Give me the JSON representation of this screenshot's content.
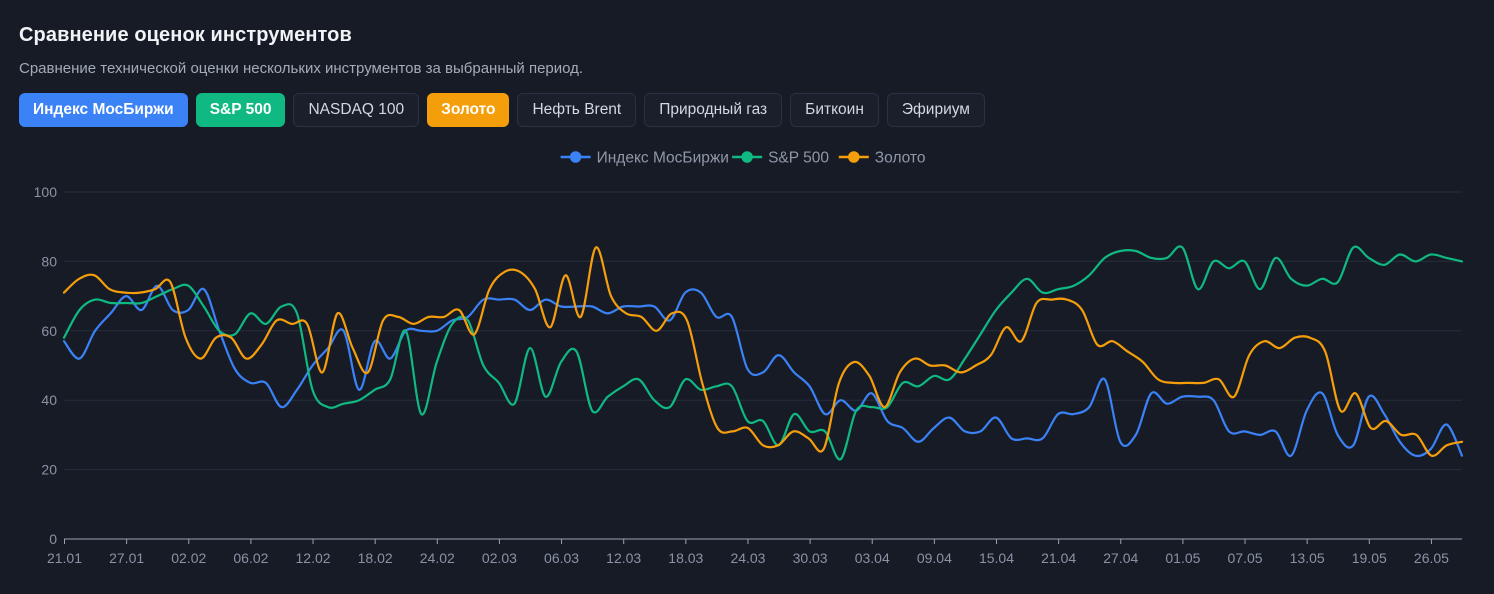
{
  "header": {
    "title": "Сравнение оценок инструментов",
    "subtitle": "Сравнение технической оценки нескольких инструментов за выбранный период."
  },
  "instruments": [
    {
      "label": "Индекс МосБиржи",
      "active": true,
      "color": "#3b82f6"
    },
    {
      "label": "S&P 500",
      "active": true,
      "color": "#10b981"
    },
    {
      "label": "NASDAQ 100",
      "active": false,
      "color": ""
    },
    {
      "label": "Золото",
      "active": true,
      "color": "#f59e0b"
    },
    {
      "label": "Нефть Brent",
      "active": false,
      "color": ""
    },
    {
      "label": "Природный газ",
      "active": false,
      "color": ""
    },
    {
      "label": "Биткоин",
      "active": false,
      "color": ""
    },
    {
      "label": "Эфириум",
      "active": false,
      "color": ""
    }
  ],
  "chart_data": {
    "type": "line",
    "title": "",
    "xlabel": "",
    "ylabel": "",
    "ylim": [
      0,
      100
    ],
    "yticks": [
      0,
      20,
      40,
      60,
      80,
      100
    ],
    "xticks": [
      "21.01",
      "27.01",
      "02.02",
      "06.02",
      "12.02",
      "18.02",
      "24.02",
      "02.03",
      "06.03",
      "12.03",
      "18.03",
      "24.03",
      "30.03",
      "03.04",
      "09.04",
      "15.04",
      "21.04",
      "27.04",
      "01.05",
      "07.05",
      "13.05",
      "19.05",
      "26.05"
    ],
    "legend_position": "top-center",
    "grid": true,
    "series": [
      {
        "name": "Индекс МосБиржи",
        "color": "#3b82f6",
        "values": [
          57,
          52,
          60,
          65,
          70,
          66,
          73,
          66,
          66,
          72,
          60,
          49,
          45,
          45,
          38,
          43,
          50,
          55,
          60,
          43,
          57,
          52,
          60,
          60,
          60,
          63,
          64,
          69,
          69,
          69,
          66,
          69,
          67,
          67,
          67,
          65,
          67,
          67,
          67,
          63,
          71,
          71,
          64,
          64,
          49,
          48,
          53,
          48,
          44,
          36,
          40,
          37,
          42,
          34,
          32,
          28,
          32,
          35,
          31,
          31,
          35,
          29,
          29,
          29,
          36,
          36,
          38,
          46,
          28,
          30,
          42,
          39,
          41,
          41,
          40,
          31,
          31,
          30,
          31,
          24,
          37,
          42,
          30,
          27,
          41,
          36,
          28,
          24,
          26,
          33,
          24
        ]
      },
      {
        "name": "S&P 500",
        "color": "#10b981",
        "values": [
          58,
          66,
          69,
          68,
          68,
          68,
          70,
          72,
          73,
          67,
          60,
          59,
          65,
          62,
          67,
          65,
          43,
          38,
          39,
          40,
          43,
          46,
          60,
          36,
          51,
          62,
          63,
          50,
          45,
          39,
          55,
          41,
          51,
          54,
          37,
          41,
          44,
          46,
          40,
          38,
          46,
          43,
          44,
          44,
          34,
          34,
          27,
          36,
          31,
          31,
          23,
          37,
          38,
          38,
          45,
          44,
          47,
          46,
          52,
          59,
          66,
          71,
          75,
          71,
          72,
          73,
          76,
          81,
          83,
          83,
          81,
          81,
          84,
          72,
          80,
          78,
          80,
          72,
          81,
          75,
          73,
          75,
          74,
          84,
          81,
          79,
          82,
          80,
          82,
          81,
          80
        ]
      },
      {
        "name": "Золото",
        "color": "#f59e0b",
        "values": [
          71,
          75,
          76,
          72,
          71,
          71,
          72,
          74,
          58,
          52,
          58,
          58,
          52,
          56,
          63,
          62,
          62,
          48,
          65,
          55,
          48,
          63,
          64,
          62,
          64,
          64,
          66,
          59,
          72,
          77,
          77,
          72,
          61,
          76,
          64,
          84,
          70,
          65,
          64,
          60,
          65,
          63,
          45,
          32,
          31,
          32,
          27,
          27,
          31,
          29,
          26,
          45,
          51,
          47,
          38,
          48,
          52,
          50,
          50,
          48,
          50,
          53,
          61,
          57,
          68,
          69,
          69,
          66,
          56,
          57,
          54,
          51,
          46,
          45,
          45,
          45,
          46,
          41,
          53,
          57,
          55,
          58,
          58,
          54,
          37,
          42,
          32,
          34,
          30,
          30,
          24,
          27,
          28
        ]
      }
    ]
  }
}
